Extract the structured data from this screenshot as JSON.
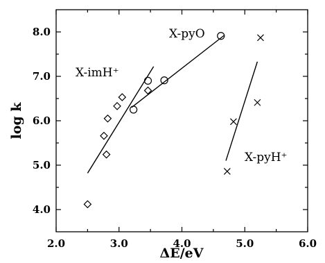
{
  "chart_data": {
    "type": "scatter",
    "title": "",
    "xlabel": "ΔE/eV",
    "ylabel": "log k",
    "xlim": [
      2.0,
      6.0
    ],
    "ylim": [
      3.5,
      8.5
    ],
    "xticks": [
      2.0,
      3.0,
      4.0,
      5.0,
      6.0
    ],
    "xtick_labels": [
      "2.0",
      "3.0",
      "4.0",
      "5.0",
      "6.0"
    ],
    "yticks": [
      4.0,
      5.0,
      6.0,
      7.0,
      8.0
    ],
    "ytick_labels": [
      "4.0",
      "5.0",
      "6.0",
      "7.0",
      "8.0"
    ],
    "grid": false,
    "series": [
      {
        "name": "X-imH⁺",
        "marker": "diamond",
        "points": [
          [
            2.5,
            4.12
          ],
          [
            2.8,
            5.24
          ],
          [
            2.76,
            5.66
          ],
          [
            2.82,
            6.05
          ],
          [
            2.97,
            6.33
          ],
          [
            3.05,
            6.53
          ],
          [
            3.46,
            6.68
          ]
        ],
        "fit_line": [
          [
            2.5,
            4.82
          ],
          [
            3.55,
            7.22
          ]
        ]
      },
      {
        "name": "X-pyO",
        "marker": "circle",
        "points": [
          [
            3.23,
            6.25
          ],
          [
            3.46,
            6.9
          ],
          [
            3.72,
            6.91
          ],
          [
            4.62,
            7.91
          ]
        ],
        "fit_line": [
          [
            3.2,
            6.3
          ],
          [
            4.67,
            7.92
          ]
        ]
      },
      {
        "name": "X-pyH⁺",
        "marker": "cross",
        "points": [
          [
            4.72,
            4.86
          ],
          [
            4.82,
            5.98
          ],
          [
            5.2,
            6.41
          ],
          [
            5.25,
            7.87
          ]
        ],
        "fit_line": [
          [
            4.7,
            5.1
          ],
          [
            5.2,
            7.33
          ]
        ]
      }
    ]
  }
}
